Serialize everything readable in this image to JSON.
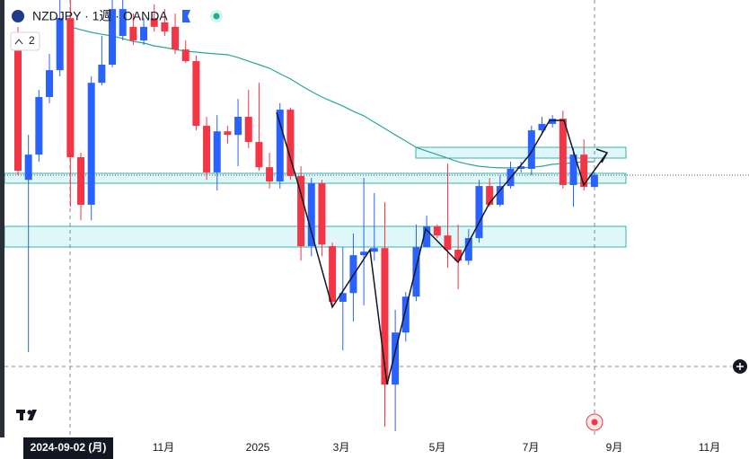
{
  "chart_data": {
    "type": "candlestick",
    "title": "NZDJPY · 1週 · OANDA",
    "indicator_count": "2",
    "crosshair_date": "2024-09-02 (月)",
    "xtick_labels": [
      "11月",
      "2025",
      "3月",
      "5月",
      "7月",
      "9月",
      "11月"
    ],
    "ylim": [
      79.21,
      93.4
    ],
    "up_color": "#2962ff",
    "down_color": "#f23645",
    "open": [
      91.87,
      87.84,
      88.62,
      90.4,
      91.23,
      92.84,
      88.54,
      87.07,
      90.84,
      91.4,
      92.29,
      92.57,
      92.15,
      92.84,
      92.71,
      92.57,
      91.87,
      91.51,
      89.51,
      88.07,
      89.34,
      89.23,
      89.79,
      89.01,
      88.23,
      87.79,
      90.01,
      87.96,
      85.79,
      87.73,
      85.79,
      84.07,
      84.34,
      85.51,
      85.62,
      85.73,
      81.51,
      83.12,
      84.23,
      85.76,
      86.4,
      86.12,
      85.68,
      85.34,
      86.04,
      87.65,
      87.07,
      87.65,
      88.18,
      88.18,
      89.37,
      89.57,
      89.73,
      87.68,
      88.62,
      87.62
    ],
    "high": [
      92.57,
      89.23,
      90.62,
      91.73,
      93.4,
      93.4,
      88.68,
      91.04,
      92.29,
      93.4,
      93.4,
      92.98,
      92.84,
      93.26,
      93.12,
      92.98,
      92.15,
      91.68,
      89.79,
      89.84,
      89.51,
      90.34,
      90.62,
      90.84,
      88.68,
      90.21,
      90.07,
      88.26,
      87.9,
      87.84,
      85.9,
      85.76,
      86.18,
      87.9,
      87.43,
      87.15,
      83.82,
      84.37,
      86.46,
      86.73,
      86.46,
      88.34,
      86.46,
      86.32,
      87.84,
      87.9,
      87.98,
      88.4,
      88.4,
      89.51,
      89.79,
      89.84,
      89.98,
      88.82,
      89.09,
      88.07
    ],
    "low": [
      87.98,
      82.51,
      88.4,
      90.21,
      91.04,
      87.01,
      86.59,
      86.59,
      90.76,
      91.32,
      92.15,
      92.01,
      92.01,
      92.43,
      92.29,
      91.73,
      91.46,
      89.37,
      87.84,
      87.51,
      88.96,
      88.26,
      88.82,
      88.12,
      87.57,
      87.57,
      87.84,
      85.34,
      85.48,
      85.48,
      83.96,
      82.57,
      83.46,
      83.96,
      85.34,
      80.21,
      80.07,
      82.84,
      84.09,
      85.76,
      86.04,
      85.12,
      84.46,
      85.21,
      85.9,
      87.01,
      87.01,
      87.57,
      88.07,
      87.98,
      89.23,
      89.46,
      87.57,
      87.01,
      87.51,
      87.62
    ],
    "close": [
      88.12,
      88.62,
      90.4,
      91.23,
      92.84,
      88.54,
      87.07,
      90.84,
      91.4,
      93.12,
      93.12,
      92.15,
      92.57,
      92.57,
      92.43,
      91.87,
      91.51,
      89.51,
      88.07,
      89.34,
      89.23,
      89.79,
      89.01,
      88.23,
      87.79,
      90.01,
      87.96,
      85.79,
      87.73,
      85.84,
      84.07,
      84.34,
      85.51,
      85.62,
      85.73,
      81.51,
      83.12,
      84.23,
      85.76,
      86.4,
      86.12,
      85.68,
      85.34,
      86.04,
      87.65,
      87.07,
      87.65,
      88.18,
      88.26,
      89.37,
      89.57,
      89.73,
      87.68,
      88.62,
      87.62,
      88.0
    ],
    "ma": {
      "color": "#26a69a",
      "values": [
        null,
        null,
        null,
        null,
        null,
        92.57,
        92.48,
        92.4,
        92.34,
        92.29,
        92.21,
        92.12,
        92.07,
        91.98,
        91.93,
        91.87,
        91.82,
        91.79,
        91.76,
        91.73,
        91.71,
        91.62,
        91.51,
        91.4,
        91.29,
        91.12,
        90.96,
        90.76,
        90.57,
        90.4,
        90.26,
        90.12,
        89.96,
        89.82,
        89.62,
        89.43,
        89.23,
        89.04,
        88.84,
        88.73,
        88.62,
        88.51,
        88.4,
        88.32,
        88.26,
        88.23,
        88.21,
        88.21,
        88.21,
        88.23,
        88.26,
        88.32,
        88.34,
        88.37,
        88.4,
        88.4
      ]
    }
  }
}
